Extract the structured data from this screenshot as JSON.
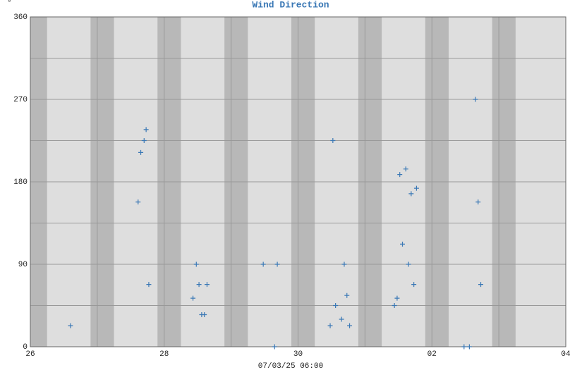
{
  "chart_data": {
    "type": "scatter",
    "title": "Wind Direction",
    "ylabel": "°",
    "xlabel": "07/03/25 06:00",
    "color": "#3a78b5",
    "grid": true,
    "xlim": [
      0,
      8
    ],
    "xticks": [
      {
        "value": 0,
        "label": "26"
      },
      {
        "value": 2,
        "label": "28"
      },
      {
        "value": 4,
        "label": "30"
      },
      {
        "value": 6,
        "label": "02"
      },
      {
        "value": 8,
        "label": "04"
      }
    ],
    "xminor_ticks": [
      1,
      3,
      5,
      7
    ],
    "ylim": [
      0,
      360
    ],
    "yticks": [
      0,
      90,
      180,
      270,
      360
    ],
    "yminor_ticks": [
      45,
      135,
      225,
      315
    ],
    "series": [
      {
        "name": "Wind Direction",
        "color": "#3a78b5",
        "x": [
          0.6,
          1.61,
          1.65,
          1.7,
          1.73,
          1.77,
          2.43,
          2.48,
          2.52,
          2.56,
          2.6,
          2.64,
          3.48,
          3.65,
          3.69,
          4.48,
          4.52,
          4.56,
          4.65,
          4.69,
          4.73,
          4.77,
          5.44,
          5.48,
          5.52,
          5.56,
          5.61,
          5.65,
          5.69,
          5.73,
          5.77,
          6.48,
          6.56,
          6.65,
          6.69,
          6.73
        ],
        "values": [
          23,
          158,
          212,
          225,
          237,
          68,
          53,
          90,
          68,
          35,
          35,
          68,
          90,
          0,
          90,
          23,
          225,
          45,
          30,
          90,
          56,
          23,
          45,
          53,
          188,
          112,
          194,
          90,
          167,
          68,
          173,
          0,
          0,
          270,
          158,
          68
        ]
      }
    ]
  }
}
